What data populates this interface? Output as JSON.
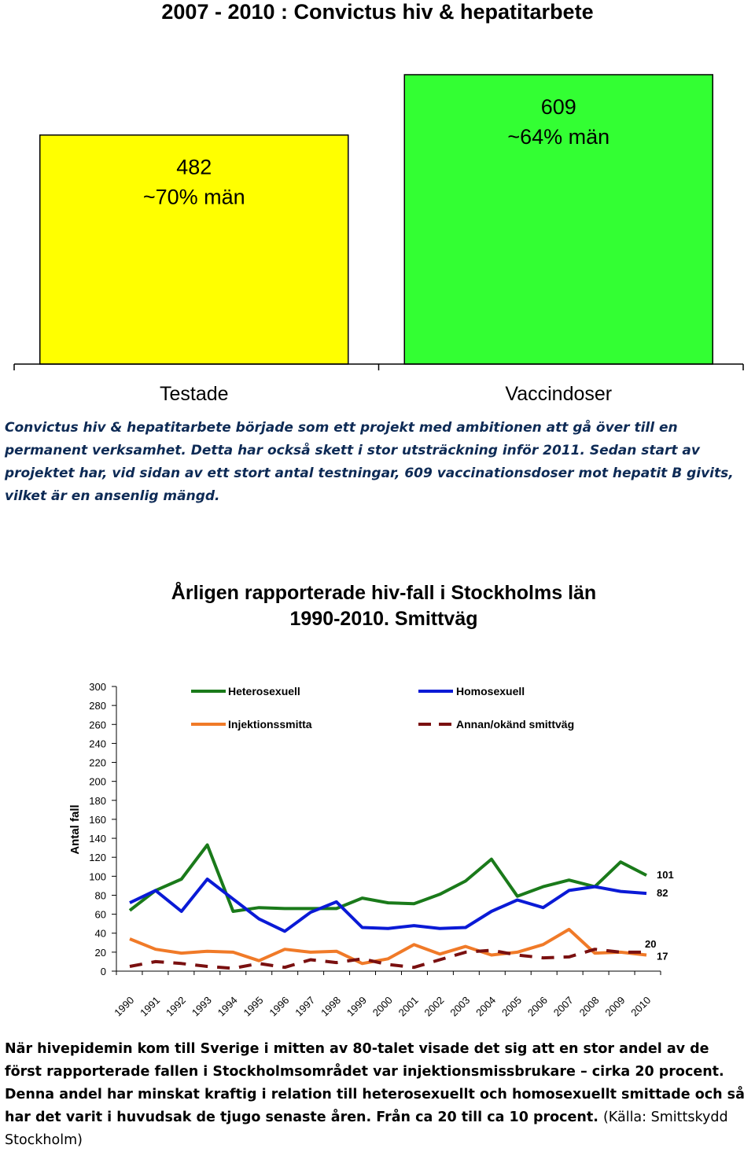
{
  "page_title": "2007 - 2010 : Convictus hiv & hepatitarbete",
  "chart_data": [
    {
      "type": "bar",
      "title": "2007 - 2010 : Convictus hiv & hepatitarbete",
      "categories": [
        "Testade",
        "Vaccindoser"
      ],
      "values": [
        482,
        609
      ],
      "bar_labels": [
        [
          "482",
          "~70% män"
        ],
        [
          "609",
          "~64% män"
        ]
      ],
      "colors": [
        "#ffff00",
        "#33ff33"
      ],
      "ylim": [
        0,
        700
      ],
      "grid": false
    },
    {
      "type": "line",
      "title": "Årligen rapporterade hiv-fall i Stockholms län 1990-2010. Smittväg",
      "title_lines": [
        "Årligen rapporterade hiv-fall i Stockholms län",
        "1990-2010. Smittväg"
      ],
      "ylabel": "Antal fall",
      "xlabel": "",
      "ylim": [
        0,
        300
      ],
      "yticks": [
        0,
        20,
        40,
        60,
        80,
        100,
        120,
        140,
        160,
        180,
        200,
        220,
        240,
        260,
        280,
        300
      ],
      "x": [
        "1990",
        "1991",
        "1992",
        "1993",
        "1994",
        "1995",
        "1996",
        "1997",
        "1998",
        "1999",
        "2000",
        "2001",
        "2002",
        "2003",
        "2004",
        "2005",
        "2006",
        "2007",
        "2008",
        "2009",
        "2010"
      ],
      "grid": false,
      "legend_position": "top",
      "series": [
        {
          "name": "Heterosexuell",
          "color": "#1a7a1a",
          "dash": "solid",
          "values": [
            64,
            85,
            97,
            133,
            63,
            67,
            66,
            66,
            66,
            77,
            72,
            71,
            81,
            95,
            118,
            79,
            89,
            96,
            89,
            115,
            101
          ]
        },
        {
          "name": "Homosexuell",
          "color": "#0a1ad6",
          "dash": "solid",
          "values": [
            72,
            85,
            63,
            97,
            76,
            55,
            42,
            62,
            73,
            46,
            45,
            48,
            45,
            46,
            63,
            75,
            67,
            85,
            89,
            84,
            82
          ]
        },
        {
          "name": "Injektionssmitta",
          "color": "#f07a28",
          "dash": "solid",
          "values": [
            34,
            23,
            19,
            21,
            20,
            11,
            23,
            20,
            21,
            8,
            13,
            28,
            18,
            26,
            17,
            20,
            28,
            44,
            19,
            20,
            17
          ]
        },
        {
          "name": "Annan/okänd smittväg",
          "color": "#7a1010",
          "dash": "dashed",
          "values": [
            5,
            10,
            8,
            5,
            3,
            8,
            4,
            12,
            9,
            13,
            7,
            4,
            12,
            20,
            22,
            17,
            14,
            15,
            23,
            20,
            20
          ]
        }
      ],
      "end_labels": [
        "101",
        "82",
        "20",
        "17"
      ]
    }
  ],
  "paragraph_top": "Convictus hiv & hepatitarbete började som ett projekt med ambitionen att gå över till en permanent verksamhet. Detta har också skett i stor utsträckning inför 2011. Sedan start av projektet har, vid sidan av ett stort antal testningar, 609 vaccinationsdoser mot hepatit B givits, vilket är en ansenlig mängd.",
  "paragraph_bottom": "När hivepidemin kom till Sverige i mitten av 80-talet visade det sig att en stor andel av de först rapporterade fallen i Stockholmsområdet var injektionsmissbrukare  – cirka  20 procent. Denna andel har minskat kraftig i relation till heterosexuellt och homosexuellt smittade och så har det varit i huvudsak de tjugo senaste åren. Från ca 20 till ca 10 procent.",
  "paragraph_bottom_source": "(Källa: Smittskydd Stockholm)"
}
